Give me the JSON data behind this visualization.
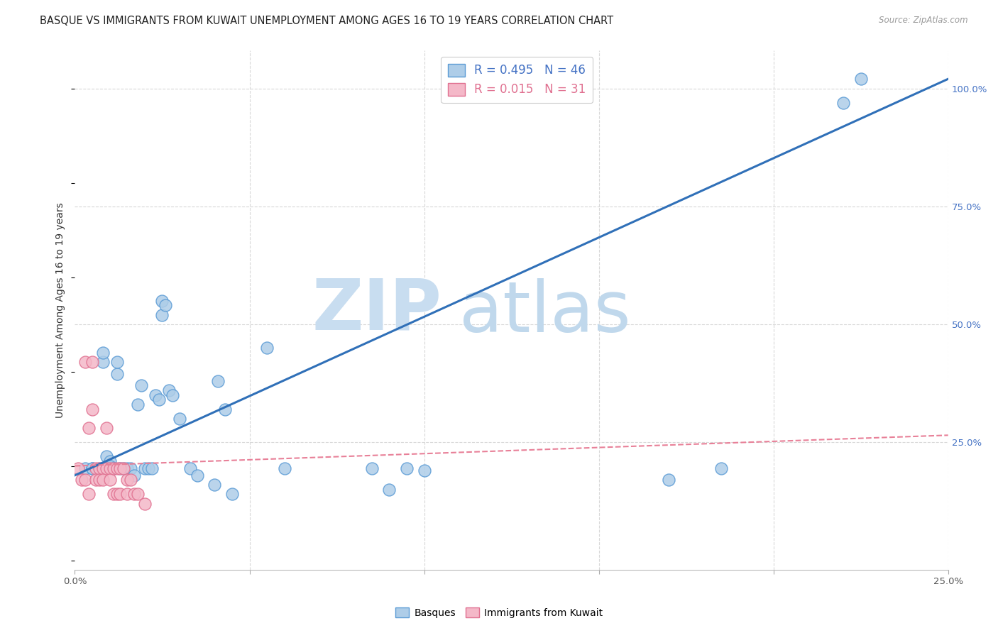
{
  "title": "BASQUE VS IMMIGRANTS FROM KUWAIT UNEMPLOYMENT AMONG AGES 16 TO 19 YEARS CORRELATION CHART",
  "source": "Source: ZipAtlas.com",
  "ylabel": "Unemployment Among Ages 16 to 19 years",
  "xlim": [
    0.0,
    0.25
  ],
  "ylim": [
    -0.02,
    1.08
  ],
  "legend_blue_r": "0.495",
  "legend_blue_n": "46",
  "legend_pink_r": "0.015",
  "legend_pink_n": "31",
  "blue_fill": "#aecde8",
  "blue_edge": "#5b9bd5",
  "pink_fill": "#f4b8c8",
  "pink_edge": "#e07090",
  "blue_line_color": "#3070b8",
  "pink_line_color": "#e88098",
  "watermark_zip": "ZIP",
  "watermark_atlas": "atlas",
  "watermark_zip_color": "#c8ddf0",
  "watermark_atlas_color": "#c0d8ec",
  "basques_x": [
    0.003,
    0.005,
    0.005,
    0.007,
    0.008,
    0.008,
    0.009,
    0.01,
    0.01,
    0.011,
    0.012,
    0.012,
    0.013,
    0.014,
    0.015,
    0.016,
    0.017,
    0.018,
    0.019,
    0.02,
    0.021,
    0.022,
    0.023,
    0.024,
    0.025,
    0.025,
    0.026,
    0.027,
    0.028,
    0.03,
    0.033,
    0.035,
    0.04,
    0.041,
    0.043,
    0.045,
    0.055,
    0.06,
    0.085,
    0.09,
    0.095,
    0.1,
    0.17,
    0.185,
    0.22,
    0.225
  ],
  "basques_y": [
    0.195,
    0.195,
    0.195,
    0.195,
    0.42,
    0.44,
    0.22,
    0.21,
    0.2,
    0.195,
    0.395,
    0.42,
    0.195,
    0.195,
    0.195,
    0.195,
    0.18,
    0.33,
    0.37,
    0.195,
    0.195,
    0.195,
    0.35,
    0.34,
    0.52,
    0.55,
    0.54,
    0.36,
    0.35,
    0.3,
    0.195,
    0.18,
    0.16,
    0.38,
    0.32,
    0.14,
    0.45,
    0.195,
    0.195,
    0.15,
    0.195,
    0.19,
    0.17,
    0.195,
    0.97,
    1.02
  ],
  "kuwait_x": [
    0.001,
    0.002,
    0.003,
    0.003,
    0.004,
    0.004,
    0.005,
    0.005,
    0.006,
    0.006,
    0.007,
    0.007,
    0.008,
    0.008,
    0.009,
    0.009,
    0.01,
    0.01,
    0.011,
    0.011,
    0.012,
    0.012,
    0.013,
    0.013,
    0.014,
    0.015,
    0.015,
    0.016,
    0.017,
    0.018,
    0.02
  ],
  "kuwait_y": [
    0.195,
    0.17,
    0.42,
    0.17,
    0.28,
    0.14,
    0.42,
    0.32,
    0.195,
    0.17,
    0.195,
    0.17,
    0.195,
    0.17,
    0.28,
    0.195,
    0.195,
    0.17,
    0.195,
    0.14,
    0.195,
    0.14,
    0.195,
    0.14,
    0.195,
    0.17,
    0.14,
    0.17,
    0.14,
    0.14,
    0.12
  ],
  "blue_trend_x0": 0.0,
  "blue_trend_y0": 0.18,
  "blue_trend_x1": 0.25,
  "blue_trend_y1": 1.02,
  "pink_trend_x0": 0.0,
  "pink_trend_y0": 0.2,
  "pink_trend_x1": 0.25,
  "pink_trend_y1": 0.265,
  "grid_color": "#d8d8d8",
  "bg_color": "#ffffff",
  "title_fontsize": 10.5,
  "ylabel_fontsize": 10,
  "tick_fontsize": 9.5,
  "legend_fontsize": 12
}
